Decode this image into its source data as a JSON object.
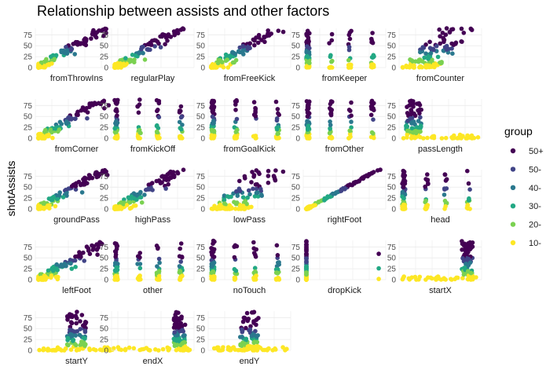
{
  "chart_data": {
    "type": "scatter",
    "title": "Relationship between assists and other factors",
    "ylabel": "shotAssists",
    "ylim": [
      0,
      90
    ],
    "y_ticks": [
      0,
      25,
      50,
      75
    ],
    "legend": {
      "title": "group",
      "placement": "right",
      "entries": [
        {
          "label": "50+",
          "color": "#440154"
        },
        {
          "label": "50-",
          "color": "#414487"
        },
        {
          "label": "40-",
          "color": "#2A788E"
        },
        {
          "label": "30-",
          "color": "#22A884"
        },
        {
          "label": "20-",
          "color": "#7AD151"
        },
        {
          "label": "10-",
          "color": "#FDE725"
        }
      ]
    },
    "panels": [
      {
        "name": "fromThrowIns",
        "pattern": "linear"
      },
      {
        "name": "regularPlay",
        "pattern": "linear"
      },
      {
        "name": "fromFreeKick",
        "pattern": "linear"
      },
      {
        "name": "fromKeeper",
        "pattern": "vertical"
      },
      {
        "name": "fromCounter",
        "pattern": "spread"
      },
      {
        "name": "fromCorner",
        "pattern": "linear"
      },
      {
        "name": "fromKickOff",
        "pattern": "vertical"
      },
      {
        "name": "fromGoalKick",
        "pattern": "vertical"
      },
      {
        "name": "fromOther",
        "pattern": "vertical"
      },
      {
        "name": "passLength",
        "pattern": "peak-left"
      },
      {
        "name": "groundPass",
        "pattern": "linear"
      },
      {
        "name": "highPass",
        "pattern": "linear"
      },
      {
        "name": "lowPass",
        "pattern": "spread"
      },
      {
        "name": "rightFoot",
        "pattern": "tight"
      },
      {
        "name": "head",
        "pattern": "vertical"
      },
      {
        "name": "leftFoot",
        "pattern": "linear"
      },
      {
        "name": "other",
        "pattern": "vertical"
      },
      {
        "name": "noTouch",
        "pattern": "vertical"
      },
      {
        "name": "dropKick",
        "pattern": "zero"
      },
      {
        "name": "startX",
        "pattern": "peak-right"
      },
      {
        "name": "startY",
        "pattern": "peak-mid"
      },
      {
        "name": "endX",
        "pattern": "peak-right"
      },
      {
        "name": "endY",
        "pattern": "peak-mid"
      }
    ]
  }
}
